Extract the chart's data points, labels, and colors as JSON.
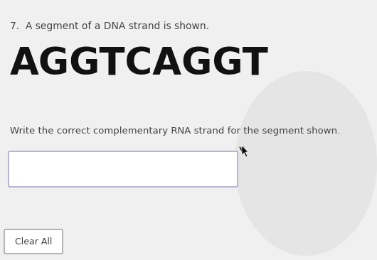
{
  "bg_color": "#d8d8d8",
  "page_color": "#f0f0f0",
  "question_label": "7.",
  "question_text": "A segment of a DNA strand is shown.",
  "dna_sequence": "AGGTCAGGT",
  "instruction_text": "Write the correct complementary RNA strand for the segment shown.",
  "button_text": "Clear All",
  "text_color": "#444444",
  "dna_color": "#111111",
  "input_border_color": "#aaaacc",
  "btn_border_color": "#999999",
  "q_fontsize": 10,
  "dna_fontsize": 38,
  "instr_fontsize": 9.5,
  "btn_fontsize": 9
}
